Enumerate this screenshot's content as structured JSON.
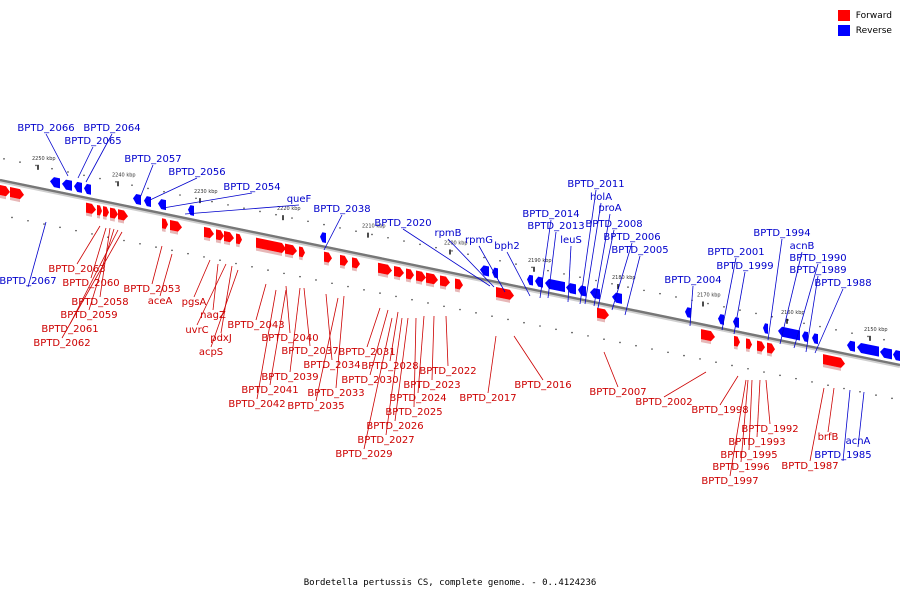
{
  "caption": "Bordetella pertussis CS, complete genome. - 0..4124236",
  "legend": [
    {
      "label": "Forward",
      "color": "#ff0000"
    },
    {
      "label": "Reverse",
      "color": "#0000ff"
    }
  ],
  "colors": {
    "forward": "#ff0000",
    "reverse": "#0000ff",
    "forward_label": "#cc0000",
    "reverse_label": "#0000cc",
    "backbone": "#777777"
  },
  "ticks": [
    "2250 kbp",
    "2240 kbp",
    "2230 kbp",
    "2220 kbp",
    "2210 kbp",
    "2200 kbp",
    "2190 kbp",
    "2180 kbp",
    "2170 kbp",
    "2160 kbp",
    "2150 kbp"
  ],
  "reverse_genes": [
    "BPTD_2066",
    "BPTD_2064",
    "BPTD_2065",
    "BPTD_2057",
    "BPTD_2056",
    "BPTD_2054",
    "queF",
    "BPTD_2038",
    "BPTD_2067",
    "BPTD_2020",
    "rpmB",
    "rpmG",
    "bph2",
    "BPTD_2014",
    "BPTD_2013",
    "leuS",
    "BPTD_2011",
    "holA",
    "proA",
    "BPTD_2008",
    "BPTD_2006",
    "BPTD_2005",
    "BPTD_2004",
    "BPTD_2001",
    "BPTD_1999",
    "BPTD_1994",
    "acnB",
    "BPTD_1990",
    "BPTD_1989",
    "BPTD_1988",
    "acnA",
    "BPTD_1985"
  ],
  "forward_genes": [
    "BPTD_2063",
    "BPTD_2060",
    "BPTD_2058",
    "BPTD_2059",
    "BPTD_2061",
    "BPTD_2062",
    "BPTD_2053",
    "aceA",
    "pgsA",
    "nagZ",
    "uvrC",
    "pdxJ",
    "acpS",
    "BPTD_2043",
    "BPTD_2040",
    "BPTD_2037",
    "BPTD_2039",
    "BPTD_2041",
    "BPTD_2042",
    "BPTD_2034",
    "BPTD_2033",
    "BPTD_2035",
    "BPTD_2031",
    "BPTD_2030",
    "BPTD_2028",
    "BPTD_2022",
    "BPTD_2023",
    "BPTD_2024",
    "BPTD_2025",
    "BPTD_2026",
    "BPTD_2027",
    "BPTD_2029",
    "BPTD_2017",
    "BPTD_2016",
    "BPTD_2007",
    "BPTD_2002",
    "BPTD_1998",
    "BPTD_1992",
    "BPTD_1993",
    "BPTD_1995",
    "BPTD_1996",
    "BPTD_1997",
    "brfB",
    "BPTD_1987"
  ]
}
